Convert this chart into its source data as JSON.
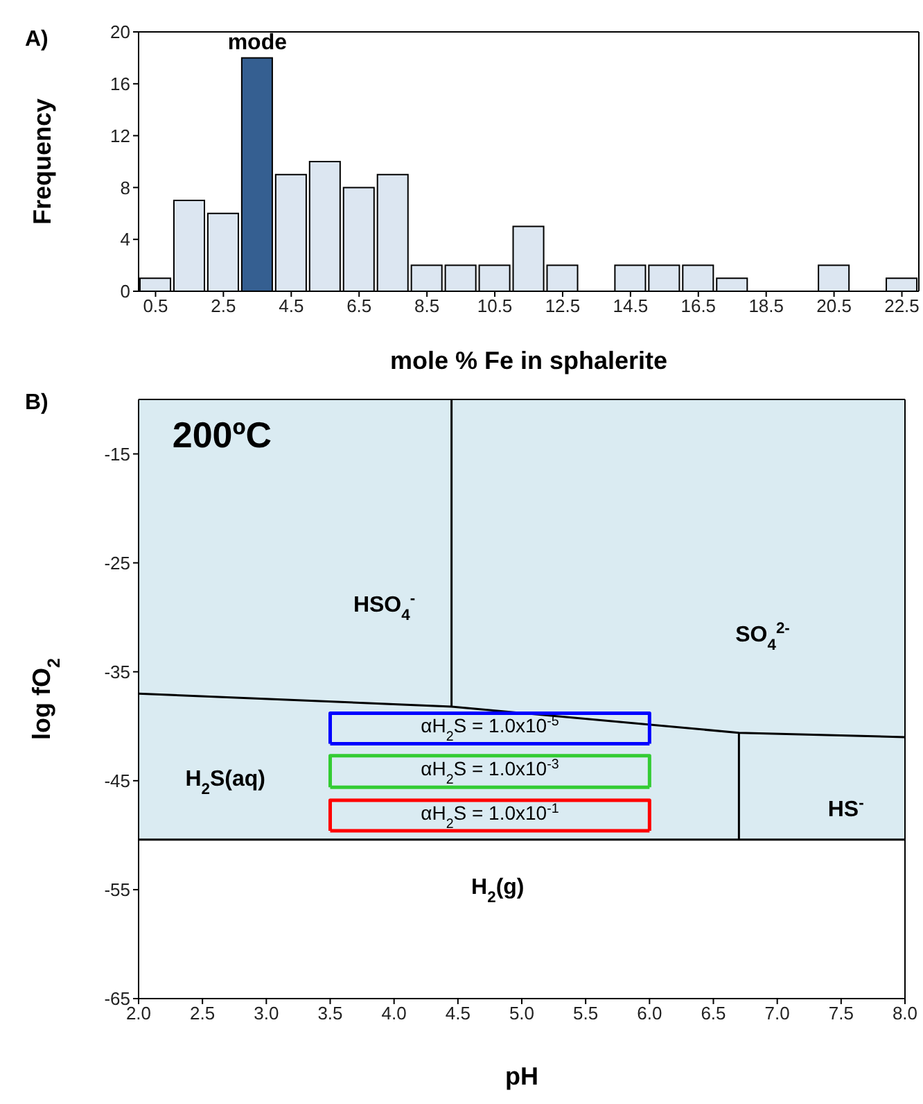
{
  "chart_data": [
    {
      "type": "histogram",
      "title": "A)",
      "xlabel": "mole % Fe in sphalerite",
      "ylabel": "Frequency",
      "bins": [
        0,
        1,
        2,
        3,
        4,
        5,
        6,
        7,
        8,
        9,
        10,
        11,
        12,
        13,
        14,
        15,
        16,
        17,
        18,
        19,
        20,
        21,
        22,
        23
      ],
      "values": [
        1,
        7,
        6,
        18,
        9,
        10,
        8,
        9,
        2,
        2,
        2,
        5,
        2,
        0,
        2,
        2,
        2,
        1,
        0,
        0,
        2,
        0,
        1
      ],
      "colors": [
        "#dce6f1",
        "#dce6f1",
        "#dce6f1",
        "#355f91",
        "#dce6f1",
        "#dce6f1",
        "#dce6f1",
        "#dce6f1",
        "#dce6f1",
        "#dce6f1",
        "#dce6f1",
        "#dce6f1",
        "#dce6f1",
        "#dce6f1",
        "#dce6f1",
        "#dce6f1",
        "#dce6f1",
        "#dce6f1",
        "#dce6f1",
        "#dce6f1",
        "#dce6f1",
        "#dce6f1",
        "#dce6f1"
      ],
      "xlim": [
        0,
        23
      ],
      "xticks": [
        0.5,
        2.5,
        4.5,
        6.5,
        8.5,
        10.5,
        12.5,
        14.5,
        16.5,
        18.5,
        20.5,
        22.5
      ],
      "ylim": [
        0,
        20
      ],
      "yticks": [
        0,
        4,
        8,
        12,
        16,
        20
      ],
      "annotations": [
        {
          "text": "mode",
          "x": 3.5,
          "y": 18
        }
      ],
      "grid": false,
      "legend": false
    },
    {
      "type": "line",
      "title": "B)",
      "xlabel": "pH",
      "ylabel": "log fO$_{2}$",
      "xlim": [
        2,
        8
      ],
      "xticks": [
        {
          "value": 2,
          "label": "2.0"
        },
        2.5,
        {
          "value": 3,
          "label": "3.0"
        },
        3.5,
        {
          "value": 4,
          "label": "4.0"
        },
        4.5,
        {
          "value": 5,
          "label": "5.0"
        },
        5.5,
        {
          "value": 6,
          "label": "6.0"
        },
        6.5,
        {
          "value": 7,
          "label": "7.0"
        },
        7.5,
        {
          "value": 8,
          "label": "8.0"
        }
      ],
      "ylim": [
        -65,
        -10
      ],
      "yticks": [
        -15,
        -25,
        -35,
        -45,
        -55,
        -65
      ],
      "bands": [
        {
          "axis": "y",
          "from": -50.4,
          "to": -10,
          "color": "#daebf2"
        }
      ],
      "series": [
        {
          "color": "#000000",
          "x": [
            2,
            4.45,
            6.7,
            8
          ],
          "values": [
            -37.0,
            -38.2,
            -40.6,
            -41.0
          ]
        },
        {
          "color": "#000000",
          "x": [
            4.45,
            4.45
          ],
          "values": [
            -10,
            -38.2
          ]
        },
        {
          "color": "#000000",
          "x": [
            6.7,
            6.7
          ],
          "values": [
            -40.6,
            -50.4
          ]
        },
        {
          "color": "#000000",
          "x": [
            2,
            8
          ],
          "values": [
            -50.4,
            -50.4
          ]
        },
        {
          "name": "αH$_{2}$S = 1.0x10$^{-5}$",
          "color": "#0000ff",
          "x": [
            3.5,
            3.5,
            6,
            6
          ],
          "values": [
            -41.6,
            -38.8,
            -38.8,
            -41.6
          ]
        },
        {
          "color": "#0000ff",
          "x": [
            3.5,
            6
          ],
          "values": [
            -41.6,
            -41.6
          ]
        },
        {
          "name": "αH$_{2}$S = 1.0x10$^{-3}$",
          "color": "#33cc33",
          "x": [
            3.5,
            3.5,
            6,
            6
          ],
          "values": [
            -45.6,
            -42.7,
            -42.7,
            -45.6
          ]
        },
        {
          "color": "#33cc33",
          "x": [
            3.5,
            6
          ],
          "values": [
            -45.6,
            -45.6
          ]
        },
        {
          "name": "αH$_{2}$S = 1.0x10$^{-1}$",
          "color": "#ff0000",
          "x": [
            3.5,
            3.5,
            6,
            6
          ],
          "values": [
            -49.6,
            -46.8,
            -46.8,
            -49.6
          ]
        },
        {
          "color": "#ff0000",
          "x": [
            3.5,
            6
          ],
          "values": [
            -49.6,
            -49.6
          ]
        }
      ],
      "annotations": [
        "200ºC",
        "HSO$_{4}$$^{-}$",
        "SO$_{4}$$^{2-}$",
        "H$_{2}$S(aq)",
        "HS$^{-}$",
        "H$_{2}$(g)"
      ],
      "marker": "none",
      "line_style": "solid",
      "grid": false,
      "legend": false
    }
  ]
}
